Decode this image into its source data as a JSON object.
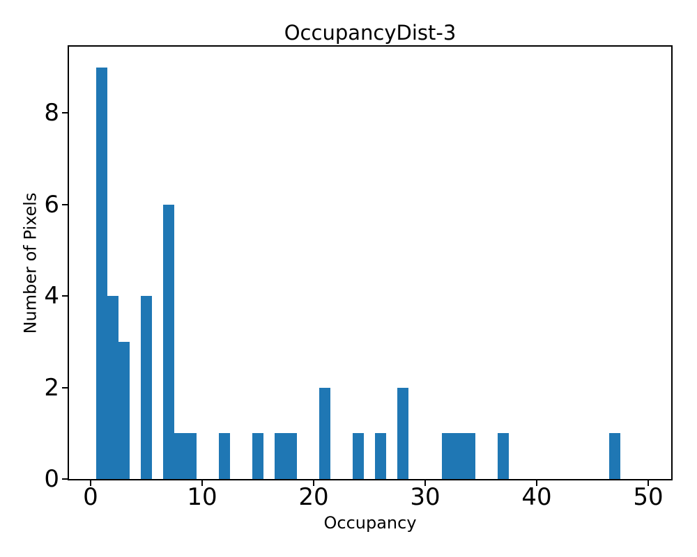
{
  "chart_data": {
    "type": "bar",
    "subtype": "histogram",
    "title": "OccupancyDist-3",
    "xlabel": "Occupancy",
    "ylabel": "Number of Pixels",
    "bar_color": "#1f77b4",
    "axis_color": "#000000",
    "background_color": "#ffffff",
    "bin_width": 1,
    "bin_centers": [
      1,
      2,
      3,
      5,
      7,
      8,
      9,
      12,
      15,
      17,
      18,
      21,
      24,
      26,
      28,
      32,
      33,
      34,
      37,
      47
    ],
    "counts": [
      9,
      4,
      3,
      4,
      6,
      1,
      1,
      1,
      1,
      1,
      1,
      2,
      1,
      1,
      2,
      1,
      1,
      1,
      1,
      1
    ],
    "xticks": [
      0,
      10,
      20,
      30,
      40,
      50
    ],
    "yticks": [
      0,
      2,
      4,
      6,
      8
    ],
    "xlim": [
      -1.95,
      52.05
    ],
    "ylim": [
      0,
      9.45
    ],
    "grid": false,
    "legend": null
  }
}
